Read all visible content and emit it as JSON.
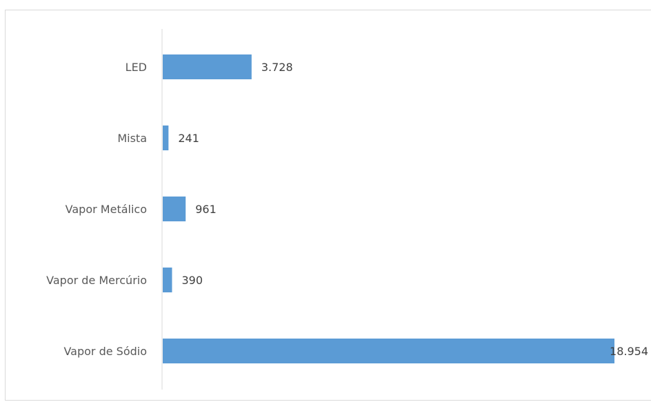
{
  "chart_data": {
    "type": "bar",
    "orientation": "horizontal",
    "categories": [
      "LED",
      "Mista",
      "Vapor Metálico",
      "Vapor de Mercúrio",
      "Vapor de Sódio"
    ],
    "values": [
      3728,
      241,
      961,
      390,
      18954
    ],
    "value_labels": [
      "3.728",
      "241",
      "961",
      "390",
      "18.954"
    ],
    "bar_color": "#5b9bd5",
    "grid": false,
    "legend": "none",
    "xlim": [
      0,
      18954
    ]
  }
}
